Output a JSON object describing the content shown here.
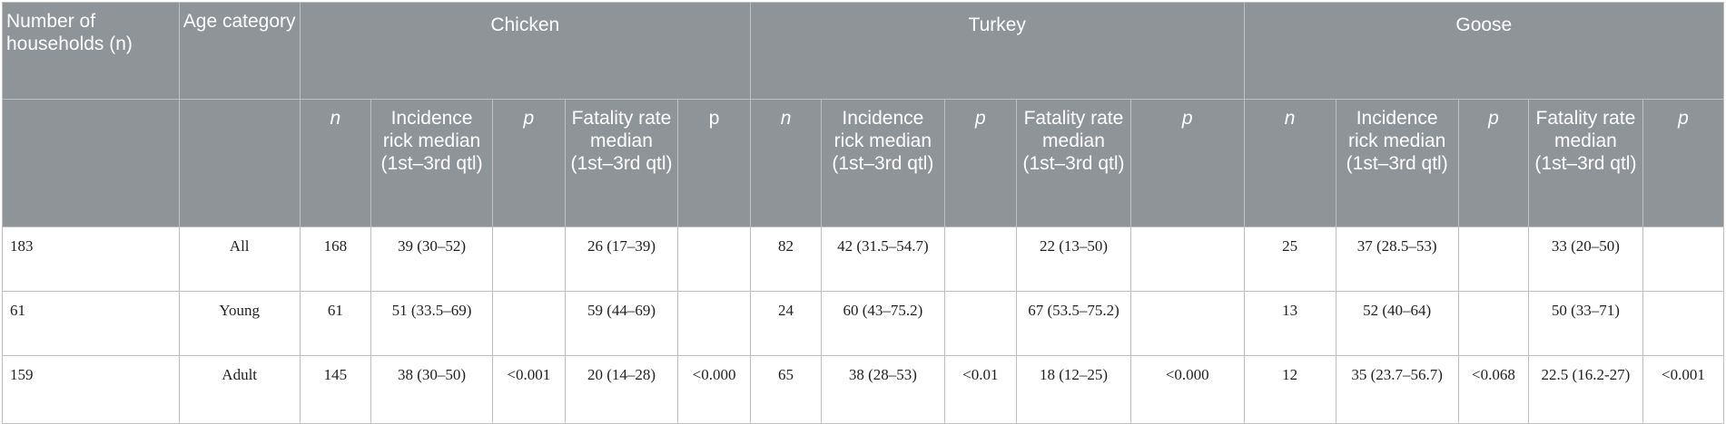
{
  "header": {
    "households": "Number of households (n)",
    "age": "Age category",
    "groups": [
      "Chicken",
      "Turkey",
      "Goose"
    ],
    "sub": [
      {
        "text": "n",
        "italic": true
      },
      {
        "text": "Incidence rick median (1st–3rd qtl)",
        "italic": false
      },
      {
        "text": "p",
        "italic": true
      },
      {
        "text": "Fatality rate median (1st–3rd qtl)",
        "italic": false
      },
      {
        "text": "p",
        "italic": false
      },
      {
        "text": "n",
        "italic": true
      },
      {
        "text": "Incidence rick median (1st–3rd qtl)",
        "italic": false
      },
      {
        "text": "p",
        "italic": true
      },
      {
        "text": "Fatality rate median (1st–3rd qtl)",
        "italic": false
      },
      {
        "text": "p",
        "italic": true
      },
      {
        "text": "n",
        "italic": true
      },
      {
        "text": "Incidence rick median (1st–3rd qtl)",
        "italic": false
      },
      {
        "text": "p",
        "italic": true
      },
      {
        "text": "Fatality rate median (1st–3rd qtl)",
        "italic": false
      },
      {
        "text": "p",
        "italic": true
      }
    ]
  },
  "rows": [
    [
      "183",
      "All",
      "168",
      "39 (30–52)",
      "",
      "26 (17–39)",
      "",
      "82",
      "42 (31.5–54.7)",
      "",
      "22 (13–50)",
      "",
      "25",
      "37 (28.5–53)",
      "",
      "33 (20–50)",
      ""
    ],
    [
      "61",
      "Young",
      "61",
      "51 (33.5–69)",
      "",
      "59 (44–69)",
      "",
      "24",
      "60 (43–75.2)",
      "",
      "67 (53.5–75.2)",
      "",
      "13",
      "52 (40–64)",
      "",
      "50 (33–71)",
      ""
    ],
    [
      "159",
      "Adult",
      "145",
      "38 (30–50)",
      "<0.001",
      "20 (14–28)",
      "<0.000",
      "65",
      "38 (28–53)",
      "<0.01",
      "18 (12–25)",
      "<0.000",
      "12",
      "35 (23.7–56.7)",
      "<0.068",
      "22.5 (16.2-27)",
      "<0.001"
    ]
  ]
}
